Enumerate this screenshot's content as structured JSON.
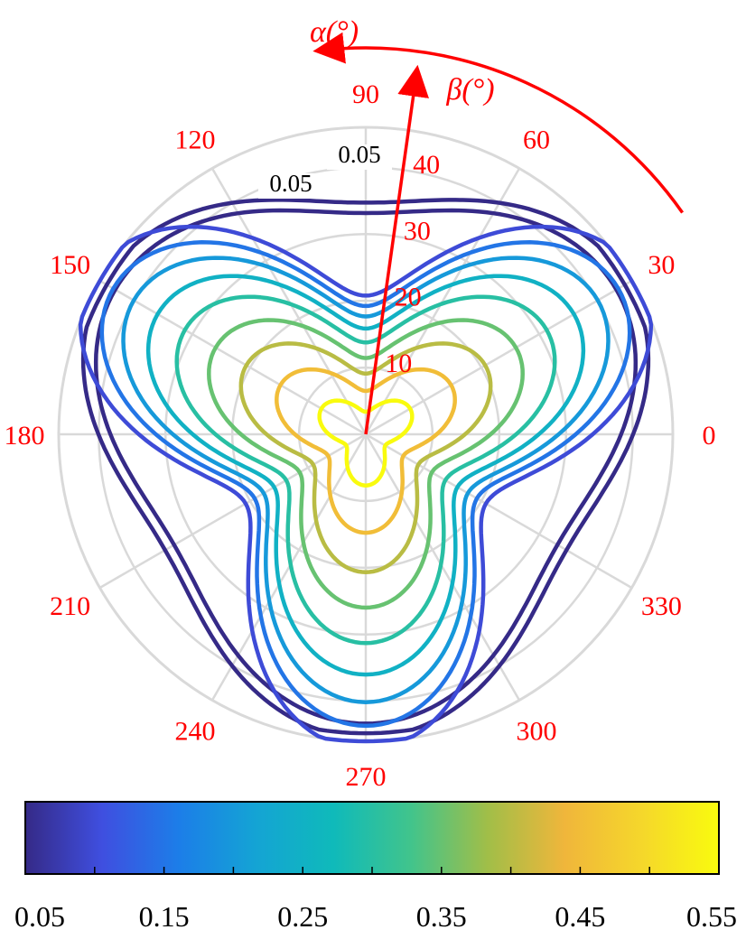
{
  "chart_data": {
    "type": "contour",
    "subtype": "polar",
    "angle_axis": {
      "label": "α(°)",
      "ticks": [
        "0",
        "30",
        "60",
        "90",
        "120",
        "150",
        "180",
        "210",
        "240",
        "270",
        "300",
        "330"
      ],
      "tick_values": [
        0,
        30,
        60,
        90,
        120,
        150,
        180,
        210,
        240,
        270,
        300,
        330
      ],
      "direction": "counterclockwise"
    },
    "radial_axis": {
      "label": "β(°)",
      "ticks": [
        "10",
        "20",
        "30",
        "40"
      ],
      "tick_values": [
        10,
        20,
        30,
        40
      ],
      "range": [
        0,
        46
      ]
    },
    "contour_levels": [
      0.05,
      0.1,
      0.15,
      0.2,
      0.25,
      0.3,
      0.35,
      0.4,
      0.45,
      0.5,
      0.55
    ],
    "contour_labels": [
      "0.05",
      "0.05"
    ],
    "colorbar": {
      "ticks": [
        "0.05",
        "0.15",
        "0.25",
        "0.35",
        "0.45",
        "0.55"
      ],
      "tick_values": [
        0.05,
        0.15,
        0.25,
        0.35,
        0.45,
        0.55
      ],
      "range": [
        0.05,
        0.55
      ]
    },
    "grid": true,
    "annotation_color": "#ff0000",
    "grid_color": "#d9d9d9",
    "colormap": [
      "#352a87",
      "#3f4fe0",
      "#1c7ee8",
      "#14a4d4",
      "#0fbaba",
      "#41c48c",
      "#a1be48",
      "#f0b63b",
      "#f5d72b",
      "#f9fb0e"
    ]
  }
}
